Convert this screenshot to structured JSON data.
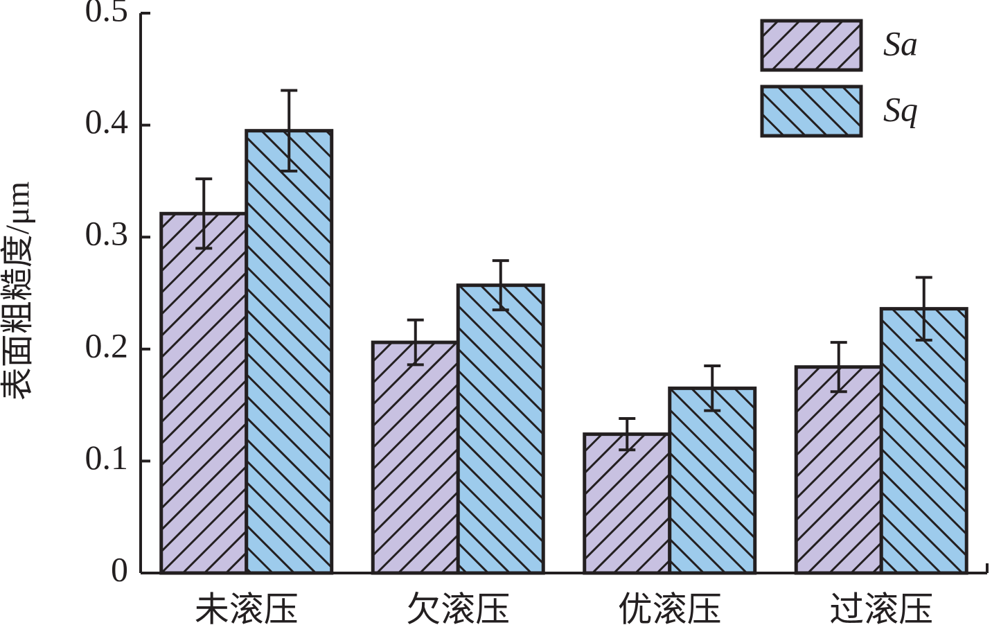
{
  "chart_data": {
    "type": "bar",
    "y_label": "表面粗糙度/μm",
    "categories": [
      "未滚压",
      "欠滚压",
      "优滚压",
      "过滚压"
    ],
    "series": [
      {
        "name": "Sa",
        "color": "#c8c1e1",
        "hatch": "forward",
        "values": [
          0.321,
          0.206,
          0.124,
          0.184
        ],
        "errors": [
          0.031,
          0.02,
          0.014,
          0.022
        ]
      },
      {
        "name": "Sq",
        "color": "#9dcbec",
        "hatch": "backward",
        "values": [
          0.395,
          0.257,
          0.165,
          0.236
        ],
        "errors": [
          0.036,
          0.022,
          0.02,
          0.028
        ]
      }
    ],
    "ylim": [
      0,
      0.5
    ],
    "yticks": [
      0,
      0.1,
      0.2,
      0.3,
      0.4,
      0.5
    ],
    "grid": false,
    "legend": "upper right"
  }
}
